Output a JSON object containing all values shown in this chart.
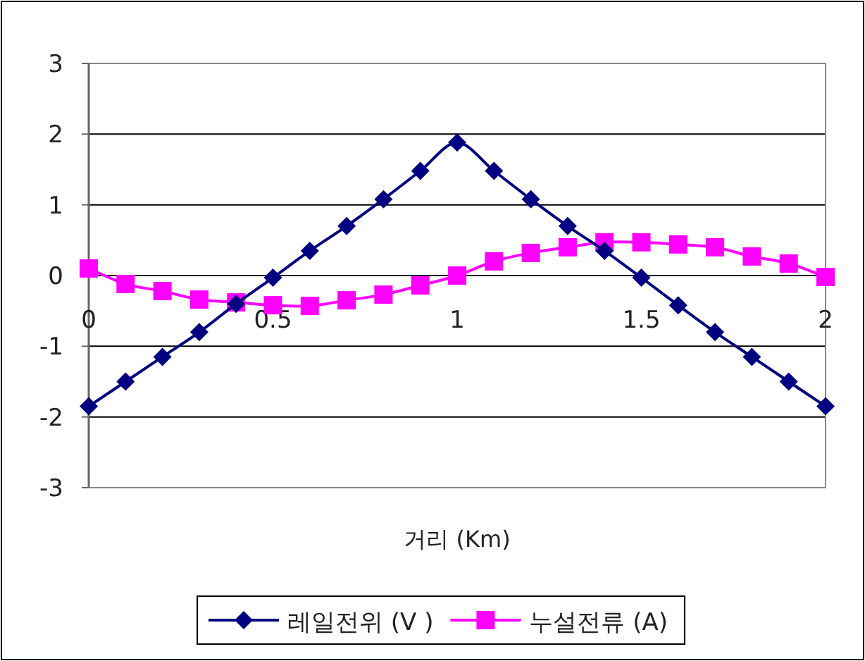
{
  "chart_data": {
    "type": "line",
    "xlabel": "거리 (Km)",
    "x": [
      0,
      0.1,
      0.2,
      0.3,
      0.4,
      0.5,
      0.6,
      0.7,
      0.8,
      0.9,
      1.0,
      1.1,
      1.2,
      1.3,
      1.4,
      1.5,
      1.6,
      1.7,
      1.8,
      1.9,
      2.0
    ],
    "series": [
      {
        "name": "레일전위 (V )",
        "color": "#000080",
        "marker": "diamond",
        "values": [
          -1.85,
          -1.5,
          -1.15,
          -0.8,
          -0.4,
          -0.03,
          0.35,
          0.7,
          1.08,
          1.48,
          1.88,
          1.48,
          1.08,
          0.7,
          0.35,
          -0.03,
          -0.42,
          -0.8,
          -1.15,
          -1.5,
          -1.85
        ]
      },
      {
        "name": "누설전류 (A)",
        "color": "#ff00ff",
        "marker": "square",
        "values": [
          0.1,
          -0.12,
          -0.22,
          -0.34,
          -0.38,
          -0.42,
          -0.43,
          -0.35,
          -0.27,
          -0.14,
          0.0,
          0.2,
          0.32,
          0.4,
          0.47,
          0.47,
          0.44,
          0.4,
          0.27,
          0.17,
          -0.02
        ]
      }
    ],
    "xlim": [
      0,
      2
    ],
    "xticks": [
      0,
      0.5,
      1,
      1.5,
      2
    ],
    "ylim": [
      -3,
      3
    ],
    "yticks": [
      -3,
      -2,
      -1,
      0,
      1,
      2,
      3
    ],
    "grid": "y",
    "legend": "bottom"
  }
}
